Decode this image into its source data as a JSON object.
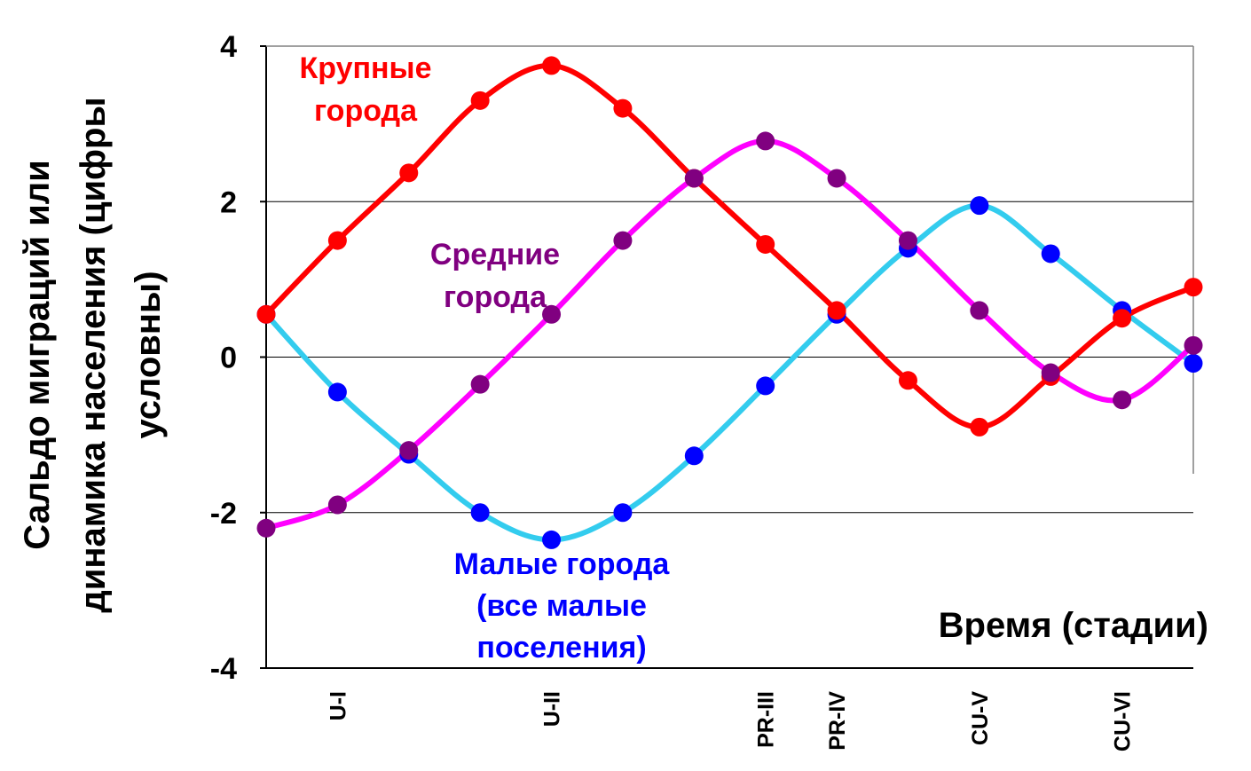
{
  "chart_data": {
    "type": "line",
    "title": "",
    "ylabel_lines": [
      "Сальдо миграций или",
      "динамика населения (цифры",
      "условны)"
    ],
    "xlabel": "Время (стадии)",
    "ylim": [
      -4,
      4
    ],
    "xlim": [
      0,
      13
    ],
    "yticks": [
      "4",
      "2",
      "0",
      "-2",
      "-4"
    ],
    "ytick_values": [
      4,
      2,
      0,
      -2,
      -4
    ],
    "gridlines_y": [
      2,
      0,
      -2
    ],
    "x_ticks": [
      {
        "label": "U-I",
        "x": 1
      },
      {
        "label": "U-II",
        "x": 4
      },
      {
        "label": "PR-III",
        "x": 7
      },
      {
        "label": "PR-IV",
        "x": 8
      },
      {
        "label": "CU-V",
        "x": 10
      },
      {
        "label": "CU-VI",
        "x": 12
      }
    ],
    "x": [
      0,
      1,
      2,
      3,
      4,
      5,
      6,
      7,
      8,
      9,
      10,
      11,
      12,
      13
    ],
    "series": [
      {
        "name": "Крупные города",
        "line_color": "#ff0000",
        "marker_color": "#ff0000",
        "values": [
          0.55,
          1.5,
          2.37,
          3.3,
          3.75,
          3.2,
          2.3,
          1.45,
          0.6,
          -0.3,
          -0.9,
          -0.25,
          0.5,
          0.9
        ]
      },
      {
        "name": "Средние города",
        "line_color": "#ff00ff",
        "marker_color": "#800080",
        "values": [
          -2.2,
          -1.9,
          -1.2,
          -0.35,
          0.55,
          1.5,
          2.3,
          2.78,
          2.3,
          1.5,
          0.6,
          -0.2,
          -0.55,
          0.15
        ]
      },
      {
        "name": "Малые города (все малые поселения)",
        "line_color": "#33ccee",
        "marker_color": "#0000ff",
        "values": [
          0.55,
          -0.45,
          -1.25,
          -2.0,
          -2.35,
          -2.0,
          -1.27,
          -0.37,
          0.55,
          1.4,
          1.95,
          1.33,
          0.6,
          -0.08
        ]
      }
    ],
    "annotations": [
      {
        "lines": [
          "Крупные",
          "города"
        ],
        "color": "#ff0000"
      },
      {
        "lines": [
          "Средние",
          "города"
        ],
        "color": "#800080"
      },
      {
        "lines": [
          "Малые города",
          "(все малые",
          "поселения)"
        ],
        "color": "#0000ff"
      }
    ],
    "grid": true,
    "legend": "none"
  }
}
